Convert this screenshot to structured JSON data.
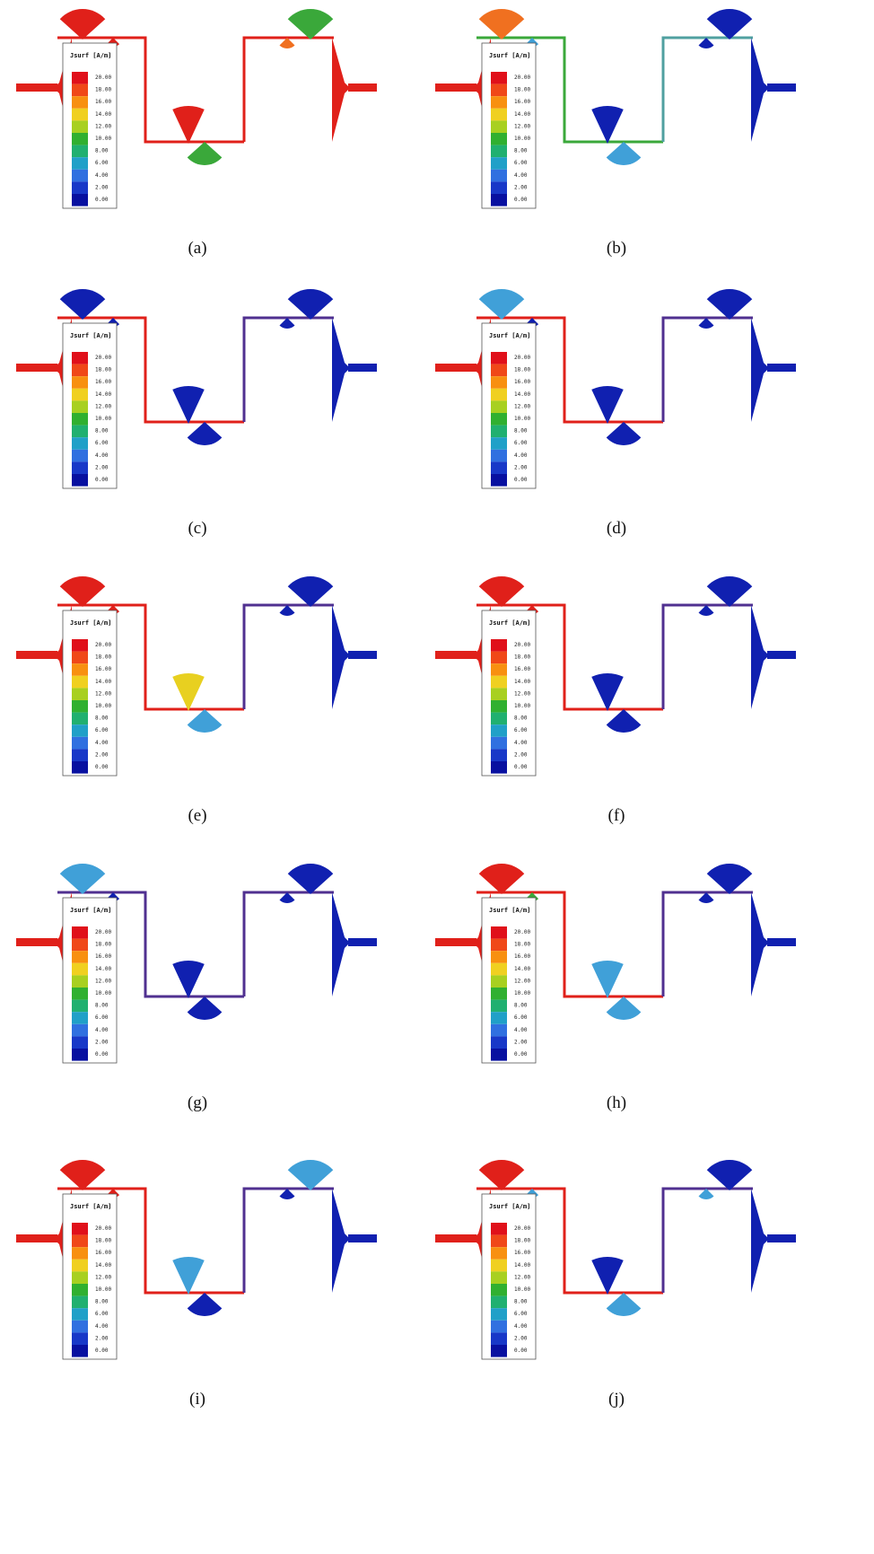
{
  "figure": {
    "panels": [
      {
        "caption": "(a)"
      },
      {
        "caption": "(b)"
      },
      {
        "caption": "(c)"
      },
      {
        "caption": "(d)"
      },
      {
        "caption": "(e)"
      },
      {
        "caption": "(f)"
      },
      {
        "caption": "(g)"
      },
      {
        "caption": "(h)"
      },
      {
        "caption": "(i)"
      },
      {
        "caption": "(j)"
      }
    ],
    "legend": {
      "title": "Jsurf [A/m]",
      "labels": [
        "20.00",
        "18.00",
        "16.00",
        "14.00",
        "12.00",
        "10.00",
        "8.00",
        "6.00",
        "4.00",
        "2.00",
        "0.00"
      ]
    }
  }
}
